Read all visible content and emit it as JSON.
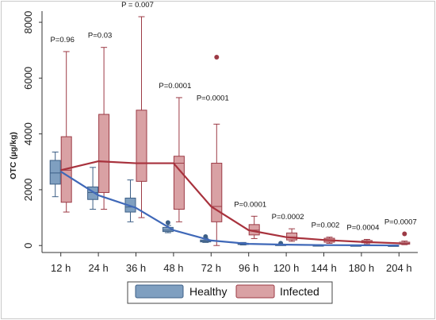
{
  "chart_data": {
    "type": "box",
    "ylabel": "OTC (µg/kg)",
    "xlabel": "",
    "ylim": [
      -250,
      8400
    ],
    "yticks": [
      0,
      2000,
      4000,
      6000,
      8000
    ],
    "grid": false,
    "legend_position": "bottom",
    "categories": [
      "12 h",
      "24 h",
      "36 h",
      "48 h",
      "72 h",
      "96 h",
      "120 h",
      "144 h",
      "180 h",
      "204 h"
    ],
    "p_values": [
      "P=0.96",
      "P=0.03",
      "P = 0.007",
      "P=0.0001",
      "P=0.0001",
      "P=0.0001",
      "P=0.0002",
      "P=0.002",
      "P=0.0004",
      "P=0.0007"
    ],
    "series": [
      {
        "name": "Healthy",
        "fill": "#7f9fc0",
        "stroke": "#3d5f86",
        "line_color": "#3f68b8",
        "boxes": [
          {
            "min": 1750,
            "q1": 2200,
            "median": 2600,
            "q3": 3050,
            "max": 3350,
            "outliers": []
          },
          {
            "min": 1300,
            "q1": 1650,
            "median": 1900,
            "q3": 2100,
            "max": 2800,
            "outliers": []
          },
          {
            "min": 850,
            "q1": 1200,
            "median": 1380,
            "q3": 1700,
            "max": 2350,
            "outliers": []
          },
          {
            "min": 460,
            "q1": 500,
            "median": 550,
            "q3": 650,
            "max": 720,
            "outliers": [
              820
            ]
          },
          {
            "min": 110,
            "q1": 130,
            "median": 160,
            "q3": 200,
            "max": 260,
            "outliers": [
              320
            ]
          },
          {
            "min": 20,
            "q1": 40,
            "median": 60,
            "q3": 80,
            "max": 110,
            "outliers": []
          },
          {
            "min": 10,
            "q1": 20,
            "median": 30,
            "q3": 40,
            "max": 50,
            "outliers": [
              80
            ]
          },
          {
            "min": 5,
            "q1": 10,
            "median": 15,
            "q3": 20,
            "max": 30,
            "outliers": []
          },
          {
            "min": 3,
            "q1": 6,
            "median": 10,
            "q3": 15,
            "max": 20,
            "outliers": []
          },
          {
            "min": 2,
            "q1": 4,
            "median": 6,
            "q3": 10,
            "max": 15,
            "outliers": []
          }
        ],
        "trend": [
          2650,
          1800,
          1350,
          550,
          180,
          60,
          30,
          15,
          10,
          5
        ]
      },
      {
        "name": "Infected",
        "fill": "#d9a1a4",
        "stroke": "#9c3a45",
        "line_color": "#a8323d",
        "boxes": [
          {
            "min": 1200,
            "q1": 1550,
            "median": 2700,
            "q3": 3900,
            "max": 6950,
            "outliers": []
          },
          {
            "min": 1300,
            "q1": 1900,
            "median": 3000,
            "q3": 4700,
            "max": 7100,
            "outliers": []
          },
          {
            "min": 1000,
            "q1": 2300,
            "median": 2950,
            "q3": 4850,
            "max": 8200,
            "outliers": []
          },
          {
            "min": 850,
            "q1": 1300,
            "median": 2950,
            "q3": 3200,
            "max": 5300,
            "outliers": []
          },
          {
            "min": 0,
            "q1": 850,
            "median": 1400,
            "q3": 2950,
            "max": 4350,
            "outliers": [
              6750
            ]
          },
          {
            "min": 250,
            "q1": 380,
            "median": 550,
            "q3": 750,
            "max": 1050,
            "outliers": []
          },
          {
            "min": 150,
            "q1": 200,
            "median": 300,
            "q3": 450,
            "max": 600,
            "outliers": []
          },
          {
            "min": 80,
            "q1": 120,
            "median": 200,
            "q3": 260,
            "max": 300,
            "outliers": []
          },
          {
            "min": 60,
            "q1": 100,
            "median": 130,
            "q3": 180,
            "max": 220,
            "outliers": []
          },
          {
            "min": 30,
            "q1": 50,
            "median": 80,
            "q3": 120,
            "max": 160,
            "outliers": [
              420
            ]
          }
        ],
        "trend": [
          2700,
          3020,
          2950,
          2950,
          1400,
          550,
          300,
          200,
          130,
          80
        ]
      }
    ]
  }
}
